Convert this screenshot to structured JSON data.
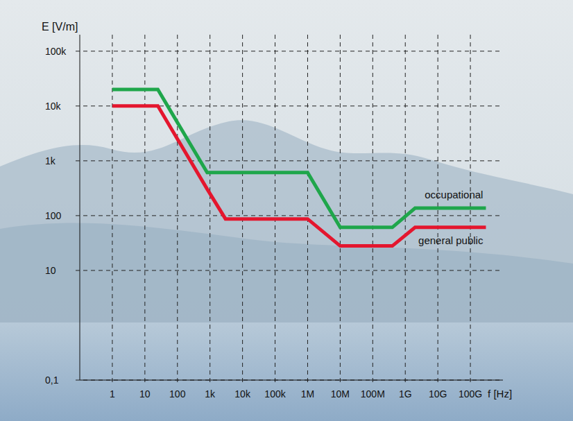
{
  "chart_data": {
    "type": "line",
    "xlabel": "f [Hz]",
    "ylabel": "E [V/m]",
    "log": true,
    "grid": true,
    "x": [
      1,
      25,
      820,
      3000,
      1000000,
      10000000,
      400000000,
      2000000000,
      300000000000
    ],
    "series": [
      {
        "name": "occupational",
        "color": "#1fa64b",
        "values": [
          20000,
          20000,
          610,
          610,
          610,
          61,
          61,
          137,
          137
        ]
      },
      {
        "name": "general public",
        "color": "#e4162e",
        "values": [
          10000,
          10000,
          305,
          87,
          87,
          28,
          28,
          61,
          61
        ]
      }
    ],
    "xlim": [
      0.1,
      1000000000000
    ],
    "xticks": [
      1,
      10,
      100,
      {
        "value": 1000,
        "label": "1k"
      },
      {
        "value": 10000,
        "label": "10k"
      },
      {
        "value": 100000,
        "label": "100k"
      },
      {
        "value": 1000000,
        "label": "1M"
      },
      {
        "value": 10000000,
        "label": "10M"
      },
      {
        "value": 100000000,
        "label": "100M"
      },
      {
        "value": 1000000000,
        "label": "1G"
      },
      {
        "value": 10000000000,
        "label": "10G"
      },
      {
        "value": 100000000000,
        "label": "100G"
      }
    ],
    "ylim": [
      0.1,
      200000
    ],
    "yticks": [
      {
        "value": 0.1,
        "label": "0,1"
      },
      10,
      100,
      {
        "value": 1000,
        "label": "1k"
      },
      {
        "value": 10000,
        "label": "10k"
      },
      {
        "value": 100000,
        "label": "100k"
      }
    ]
  }
}
